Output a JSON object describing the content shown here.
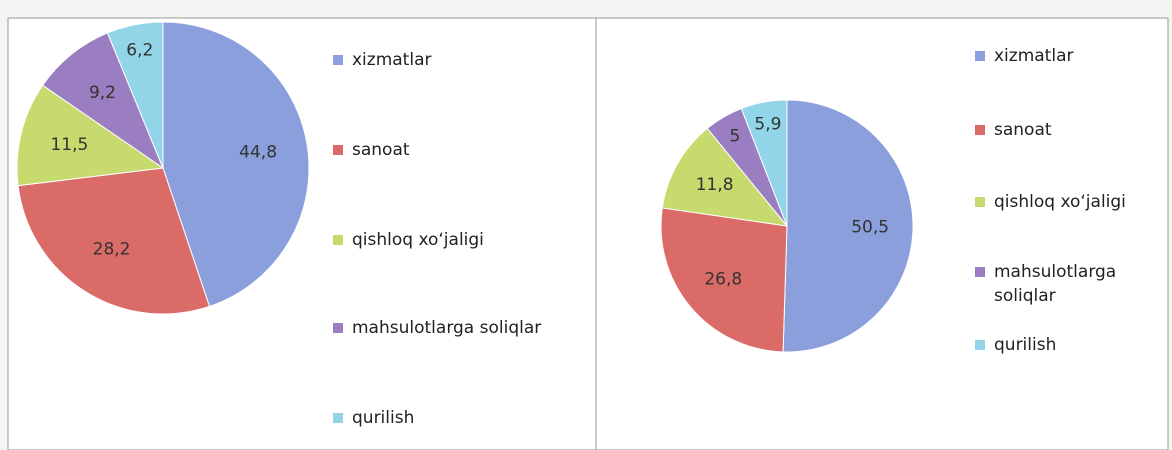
{
  "chart_data": [
    {
      "type": "pie",
      "categories": [
        "xizmatlar",
        "sanoat",
        "qishloq xo‘jaligi",
        "mahsulotlarga soliqlar",
        "qurilish"
      ],
      "values": [
        44.8,
        28.2,
        11.5,
        9.2,
        6.2
      ],
      "value_labels": [
        "44,8",
        "28,2",
        "11,5",
        "9,2",
        "6,2"
      ],
      "colors": [
        "#8b9fdd",
        "#da6b67",
        "#c6da6e",
        "#9b7dc2",
        "#92d5e8"
      ]
    },
    {
      "type": "pie",
      "categories": [
        "xizmatlar",
        "sanoat",
        "qishloq xo‘jaligi",
        "mahsulotlarga soliqlar",
        "qurilish"
      ],
      "values": [
        50.5,
        26.8,
        11.8,
        5,
        5.9
      ],
      "value_labels": [
        "50,5",
        "26,8",
        "11,8",
        "5",
        "5,9"
      ],
      "colors": [
        "#8b9fdd",
        "#da6b67",
        "#c6da6e",
        "#9b7dc2",
        "#92d5e8"
      ]
    }
  ]
}
